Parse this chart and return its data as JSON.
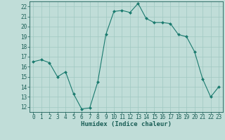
{
  "x": [
    0,
    1,
    2,
    3,
    4,
    5,
    6,
    7,
    8,
    9,
    10,
    11,
    12,
    13,
    14,
    15,
    16,
    17,
    18,
    19,
    20,
    21,
    22,
    23
  ],
  "y": [
    16.5,
    16.7,
    16.4,
    15.0,
    15.5,
    13.3,
    11.8,
    11.9,
    14.5,
    19.2,
    21.5,
    21.6,
    21.4,
    22.3,
    20.8,
    20.4,
    20.4,
    20.3,
    19.2,
    19.0,
    17.5,
    14.8,
    13.0,
    14.0
  ],
  "line_color": "#1a7a6e",
  "marker": "D",
  "marker_size": 2,
  "bg_color": "#c0ddd8",
  "grid_color": "#a0c8c2",
  "xlabel": "Humidex (Indice chaleur)",
  "xlim": [
    -0.5,
    23.5
  ],
  "ylim": [
    11.5,
    22.5
  ],
  "yticks": [
    12,
    13,
    14,
    15,
    16,
    17,
    18,
    19,
    20,
    21,
    22
  ],
  "xticks": [
    0,
    1,
    2,
    3,
    4,
    5,
    6,
    7,
    8,
    9,
    10,
    11,
    12,
    13,
    14,
    15,
    16,
    17,
    18,
    19,
    20,
    21,
    22,
    23
  ],
  "axis_color": "#1a5e56",
  "tick_color": "#1a5e56",
  "label_fontsize": 6.5,
  "tick_fontsize": 5.5
}
